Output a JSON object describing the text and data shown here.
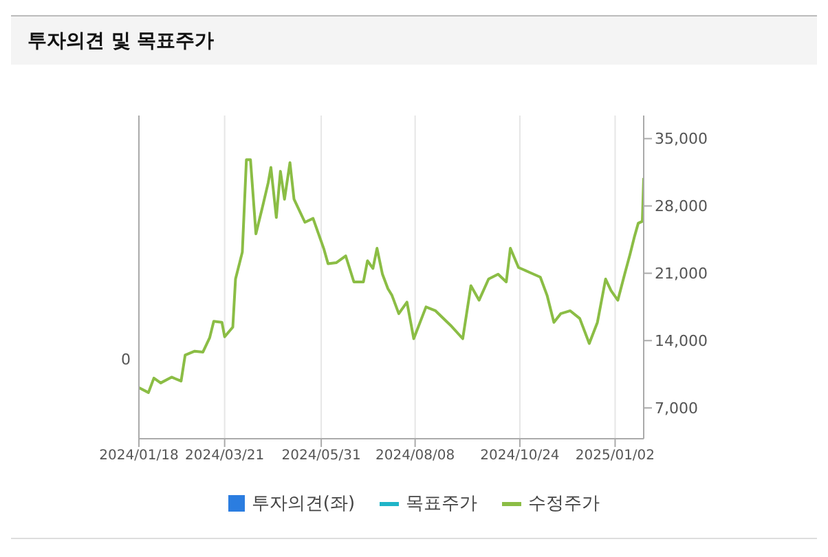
{
  "chart_data": {
    "type": "line",
    "title": "투자의견 및 목표주가",
    "xlim": [
      "2024-01-18",
      "2025-01-23"
    ],
    "xticks": [
      {
        "value": "2024-01-18",
        "label": "2024/01/18"
      },
      {
        "value": "2024-03-21",
        "label": "2024/03/21"
      },
      {
        "value": "2024-05-31",
        "label": "2024/05/31"
      },
      {
        "value": "2024-08-08",
        "label": "2024/08/08"
      },
      {
        "value": "2024-10-24",
        "label": "2024/10/24"
      },
      {
        "value": "2025-01-02",
        "label": "2025/01/02"
      }
    ],
    "annotations": [
      "0"
    ],
    "y2lim": [
      3800,
      37400
    ],
    "y2ticks": [
      {
        "value": 7000,
        "label": "7,000"
      },
      {
        "value": 14000,
        "label": "14,000"
      },
      {
        "value": 21000,
        "label": "21,000"
      },
      {
        "value": 28000,
        "label": "28,000"
      },
      {
        "value": 35000,
        "label": "35,000"
      }
    ],
    "grid": "x",
    "legend": "bottom",
    "marker": "none",
    "line_style": "solid",
    "series": [
      {
        "name": "투자의견(좌)",
        "type": "bar",
        "color": "#2b7de0"
      },
      {
        "name": "목표주가",
        "type": "line",
        "color": "#1fb5c8"
      },
      {
        "name": "수정주가",
        "color": "#8bbd45",
        "axis": "y2",
        "x": [
          "2024-01-18",
          "2024-01-25",
          "2024-01-29",
          "2024-02-03",
          "2024-02-11",
          "2024-02-18",
          "2024-02-21",
          "2024-02-28",
          "2024-03-05",
          "2024-03-10",
          "2024-03-13",
          "2024-03-19",
          "2024-03-21",
          "2024-03-27",
          "2024-03-29",
          "2024-04-03",
          "2024-04-06",
          "2024-04-09",
          "2024-04-13",
          "2024-04-18",
          "2024-04-22",
          "2024-04-24",
          "2024-04-28",
          "2024-05-01",
          "2024-05-04",
          "2024-05-08",
          "2024-05-11",
          "2024-05-19",
          "2024-05-25",
          "2024-06-02",
          "2024-06-05",
          "2024-06-11",
          "2024-06-18",
          "2024-06-24",
          "2024-07-01",
          "2024-07-04",
          "2024-07-08",
          "2024-07-11",
          "2024-07-15",
          "2024-07-19",
          "2024-07-22",
          "2024-07-27",
          "2024-08-02",
          "2024-08-07",
          "2024-08-16",
          "2024-08-23",
          "2024-09-03",
          "2024-09-12",
          "2024-09-18",
          "2024-09-24",
          "2024-10-01",
          "2024-10-08",
          "2024-10-14",
          "2024-10-17",
          "2024-10-23",
          "2024-10-31",
          "2024-11-08",
          "2024-11-13",
          "2024-11-18",
          "2024-11-23",
          "2024-11-30",
          "2024-12-07",
          "2024-12-14",
          "2024-12-20",
          "2024-12-26",
          "2024-12-30",
          "2025-01-04",
          "2025-01-09",
          "2025-01-13",
          "2025-01-16",
          "2025-01-19",
          "2025-01-22",
          "2025-01-23"
        ],
        "values": [
          9100,
          8600,
          10100,
          9600,
          10200,
          9800,
          12500,
          12900,
          12800,
          14300,
          16000,
          15900,
          14400,
          15400,
          20400,
          23200,
          32800,
          32800,
          25100,
          28000,
          30400,
          32000,
          26800,
          31600,
          28700,
          32500,
          28700,
          26300,
          26700,
          23500,
          22000,
          22100,
          22800,
          20100,
          20100,
          22300,
          21500,
          23600,
          20900,
          19400,
          18700,
          16800,
          18000,
          14200,
          17500,
          17100,
          15600,
          14200,
          19700,
          18200,
          20400,
          20900,
          20100,
          23600,
          21600,
          21100,
          20600,
          18700,
          15900,
          16800,
          17100,
          16300,
          13700,
          15900,
          20400,
          19200,
          18200,
          20900,
          23000,
          24700,
          26200,
          26400,
          30900
        ]
      }
    ]
  }
}
